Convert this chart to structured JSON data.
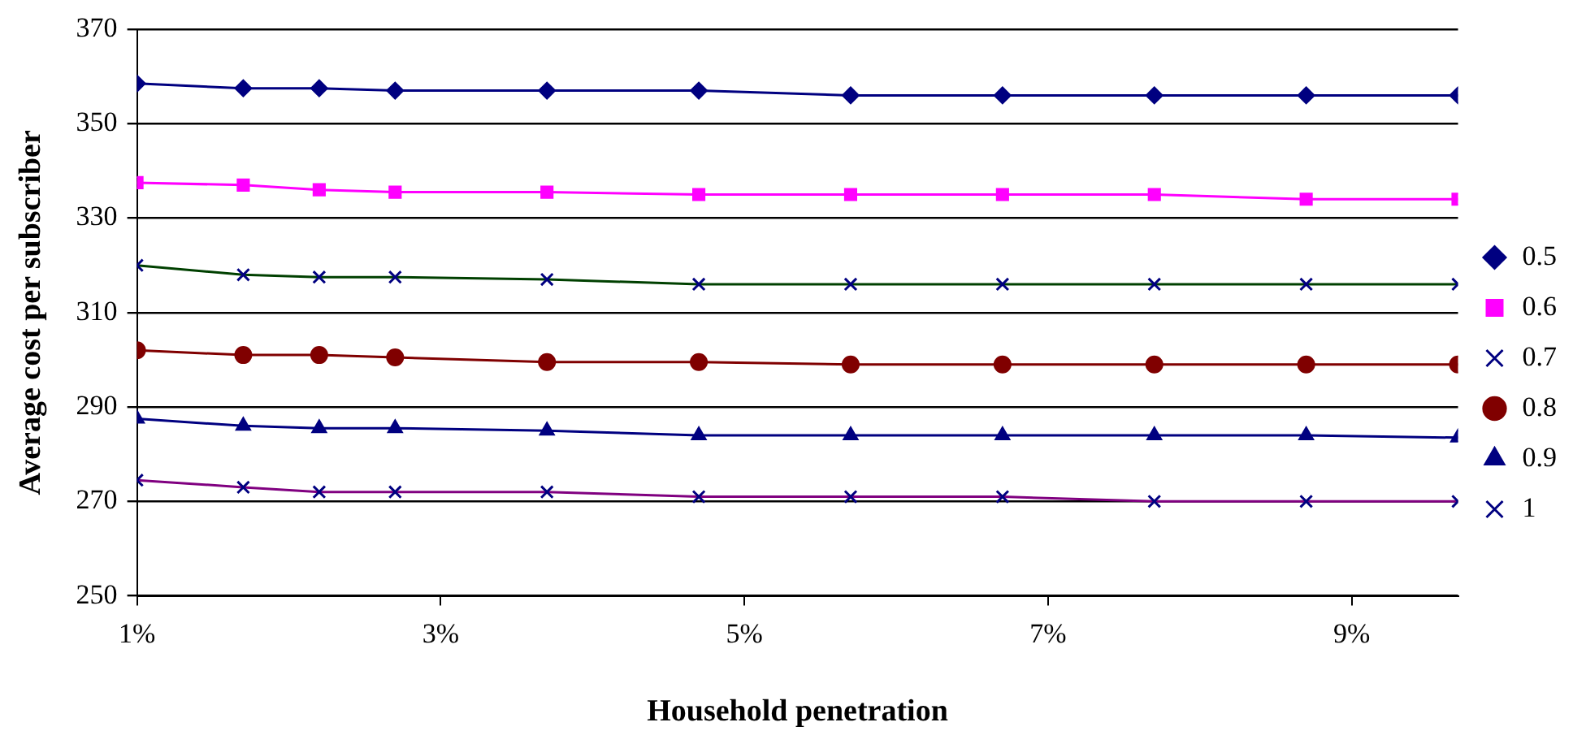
{
  "chart_data": {
    "type": "line",
    "xlabel": "Household penetration",
    "ylabel": "Average cost per subscriber",
    "x": [
      1,
      1.7,
      2.2,
      2.7,
      3.7,
      4.7,
      5.7,
      6.7,
      7.7,
      8.7,
      9.7
    ],
    "xlim": [
      1,
      9.7
    ],
    "xticks": [
      {
        "value": 1,
        "label": "1%"
      },
      {
        "value": 3,
        "label": "3%"
      },
      {
        "value": 5,
        "label": "5%"
      },
      {
        "value": 7,
        "label": "7%"
      },
      {
        "value": 9,
        "label": "9%"
      }
    ],
    "ylim": [
      250,
      370
    ],
    "yticks": [
      250,
      270,
      290,
      310,
      330,
      350,
      370
    ],
    "grid": "y",
    "legend": "right",
    "series": [
      {
        "name": "0.5",
        "color": "#000080",
        "marker": "diamond",
        "values": [
          358.5,
          357.5,
          357.5,
          357,
          357,
          357,
          356,
          356,
          356,
          356,
          356
        ]
      },
      {
        "name": "0.6",
        "color": "#ff00ff",
        "marker": "square",
        "values": [
          337.5,
          337,
          336,
          335.5,
          335.5,
          335,
          335,
          335,
          335,
          334,
          334
        ]
      },
      {
        "name": "0.7",
        "color": "#004000",
        "marker": "cross",
        "values": [
          320,
          318,
          317.5,
          317.5,
          317,
          316,
          316,
          316,
          316,
          316,
          316
        ]
      },
      {
        "name": "0.8",
        "color": "#800000",
        "marker": "circle",
        "values": [
          302,
          301,
          301,
          300.5,
          299.5,
          299.5,
          299,
          299,
          299,
          299,
          299
        ]
      },
      {
        "name": "0.9",
        "color": "#000080",
        "marker": "triangle",
        "values": [
          287.5,
          286,
          285.5,
          285.5,
          285,
          284,
          284,
          284,
          284,
          284,
          283.5
        ]
      },
      {
        "name": "1",
        "color": "#800080",
        "marker": "cross",
        "values": [
          274.5,
          273,
          272,
          272,
          272,
          271,
          271,
          271,
          270,
          270,
          270
        ]
      }
    ]
  }
}
